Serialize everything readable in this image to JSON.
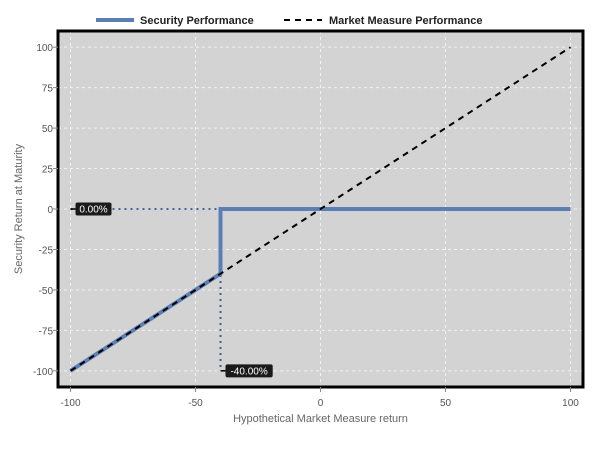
{
  "chart_data": {
    "type": "line",
    "title": "",
    "xlabel": "Hypothetical Market Measure return",
    "ylabel": "Security Return at Maturity",
    "xlim": [
      -105,
      105
    ],
    "ylim": [
      -110,
      110
    ],
    "xticks": [
      -100,
      -50,
      0,
      50,
      100
    ],
    "yticks": [
      -100,
      -75,
      -50,
      -25,
      0,
      25,
      50,
      75,
      100
    ],
    "grid": true,
    "legend": "top",
    "background_color": "#d3d3d3",
    "series": [
      {
        "name": "Security Performance",
        "style": "solid",
        "color": "#5b7fb5",
        "points": [
          [
            -100,
            -100
          ],
          [
            -40,
            -40
          ],
          [
            -40,
            0
          ],
          [
            100,
            0
          ]
        ]
      },
      {
        "name": "Market Measure Performance",
        "style": "dashed",
        "color": "#000000",
        "points": [
          [
            -100,
            -100
          ],
          [
            100,
            100
          ]
        ]
      }
    ],
    "reference_lines": [
      {
        "points": [
          [
            -100,
            0
          ],
          [
            -40,
            0
          ]
        ],
        "style": "dotted",
        "color": "#3f5e92"
      },
      {
        "points": [
          [
            -40,
            0
          ],
          [
            -40,
            -100
          ]
        ],
        "style": "dotted",
        "color": "#3f5e92"
      }
    ],
    "annotations": [
      {
        "text": "0.00%",
        "x": -100,
        "y": 0
      },
      {
        "text": "-40.00%",
        "x": -40,
        "y": -100
      }
    ]
  }
}
